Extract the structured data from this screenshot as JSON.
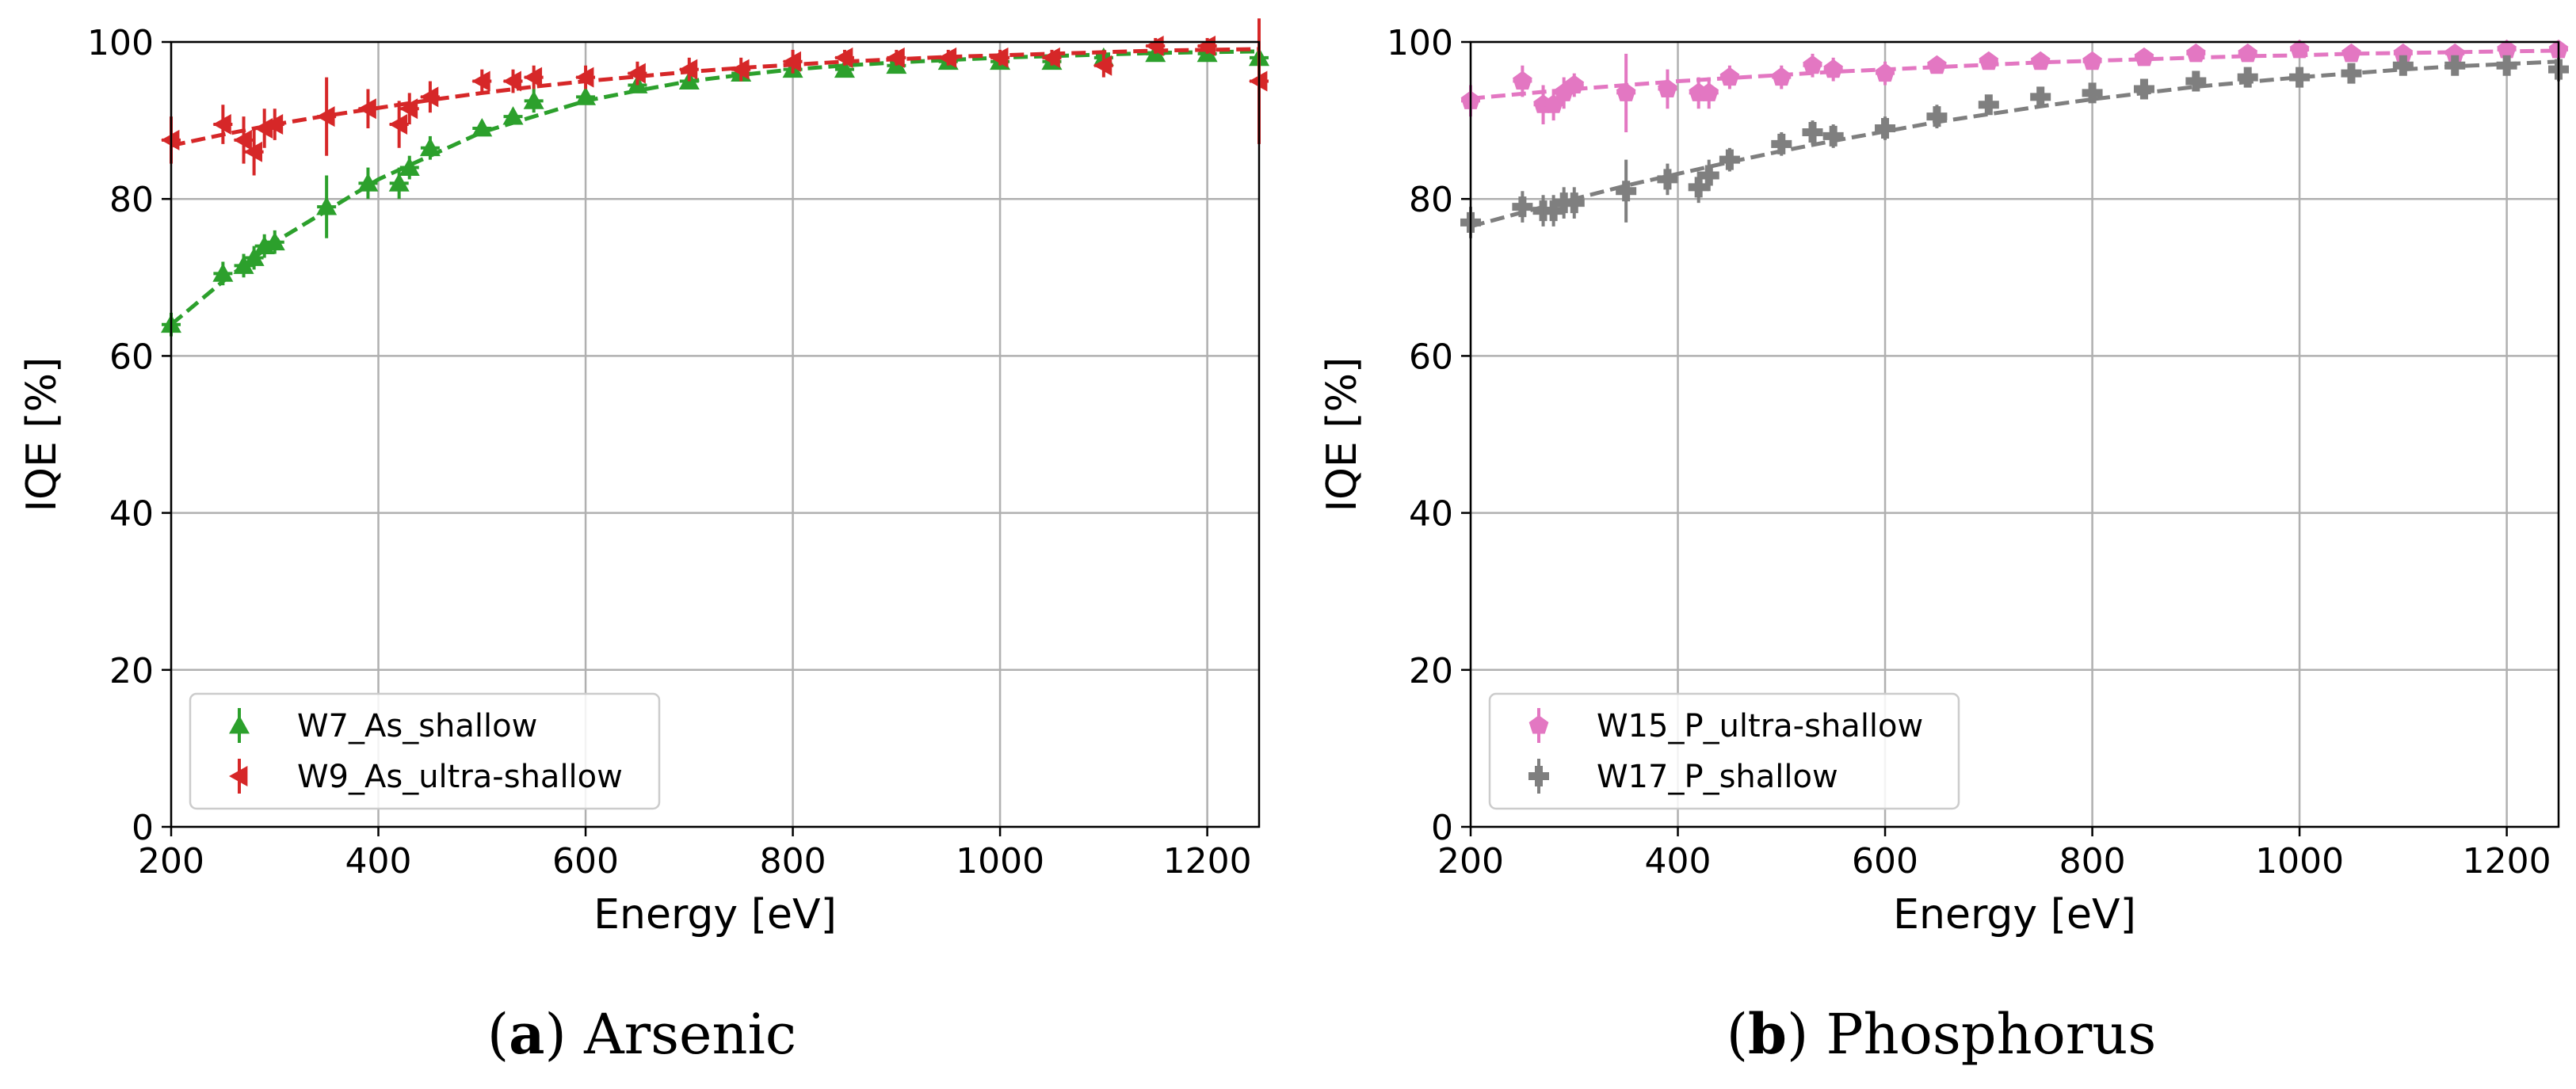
{
  "colors": {
    "W7": "#2ca02c",
    "W9": "#d62728",
    "W15": "#e377c2",
    "W17": "#7f7f7f",
    "grid": "#b0b0b0"
  },
  "chart_data": [
    {
      "type": "scatter",
      "caption_letter": "a",
      "caption_text": "Arsenic",
      "xlabel": "Energy [eV]",
      "ylabel": "IQE [%]",
      "xlim": [
        200,
        1250
      ],
      "ylim": [
        0,
        100
      ],
      "xticks": [
        200,
        400,
        600,
        800,
        1000,
        1200
      ],
      "yticks": [
        0,
        20,
        40,
        60,
        80,
        100
      ],
      "xtick_labels": [
        "200",
        "400",
        "600",
        "800",
        "1000",
        "1200"
      ],
      "ytick_labels": [
        "0",
        "20",
        "40",
        "60",
        "80",
        "100"
      ],
      "grid": true,
      "legend_position": "lower-left",
      "series": [
        {
          "name": "W7_As_shallow",
          "marker": "triangle-up",
          "color_key": "W7",
          "x": [
            200,
            250,
            270,
            280,
            290,
            300,
            350,
            390,
            420,
            430,
            450,
            500,
            530,
            550,
            600,
            650,
            700,
            750,
            800,
            850,
            900,
            950,
            1000,
            1050,
            1100,
            1150,
            1200,
            1250
          ],
          "y": [
            64,
            70.5,
            71.5,
            72.5,
            74,
            74.5,
            79,
            82,
            82,
            84,
            86.5,
            89,
            90.5,
            92.5,
            93,
            94.5,
            95,
            96,
            96.5,
            96.5,
            97,
            97.5,
            97.5,
            97.5,
            98,
            98.5,
            98.5,
            98
          ],
          "yerr": [
            1.5,
            1.5,
            1.5,
            1.5,
            1.5,
            1.5,
            4,
            2,
            2,
            1.5,
            1.5,
            1,
            1,
            1.5,
            1,
            1,
            1,
            1,
            1,
            1,
            1,
            1,
            1,
            1,
            1,
            1,
            1,
            1.5
          ],
          "fit_x": [
            200,
            250,
            300,
            350,
            400,
            450,
            500,
            550,
            600,
            650,
            700,
            750,
            800,
            850,
            900,
            950,
            1000,
            1050,
            1100,
            1150,
            1200,
            1250
          ],
          "fit_y": [
            64,
            69.5,
            74.5,
            78.5,
            82.5,
            85.5,
            88.5,
            90.5,
            92.5,
            93.8,
            95,
            95.8,
            96.5,
            97,
            97.4,
            97.7,
            98,
            98.2,
            98.4,
            98.6,
            98.7,
            98.8
          ]
        },
        {
          "name": "W9_As_ultra-shallow",
          "marker": "triangle-left",
          "color_key": "W9",
          "x": [
            200,
            250,
            270,
            280,
            290,
            300,
            350,
            390,
            420,
            430,
            450,
            500,
            530,
            550,
            600,
            650,
            700,
            750,
            800,
            850,
            900,
            950,
            1000,
            1050,
            1100,
            1150,
            1200,
            1250
          ],
          "y": [
            87.5,
            89.5,
            87.5,
            86,
            89,
            89.5,
            90.5,
            91.5,
            89.5,
            91.5,
            93,
            95,
            95,
            95.5,
            95.5,
            96,
            96.5,
            96.5,
            97.5,
            98,
            98,
            98,
            98,
            98,
            97,
            99.5,
            99.5,
            95
          ],
          "yerr": [
            3,
            2.5,
            3,
            3,
            2.5,
            2,
            5,
            2.5,
            3,
            2,
            2,
            1.5,
            1.5,
            1.5,
            1.5,
            1.5,
            1.5,
            1.5,
            1.5,
            1,
            1,
            1,
            1,
            1,
            1.5,
            1,
            1,
            8
          ],
          "fit_x": [
            200,
            250,
            300,
            350,
            400,
            450,
            500,
            550,
            600,
            650,
            700,
            750,
            800,
            850,
            900,
            950,
            1000,
            1050,
            1100,
            1150,
            1200,
            1250
          ],
          "fit_y": [
            86.8,
            88.2,
            89.5,
            90.6,
            91.6,
            92.6,
            93.5,
            94.3,
            95,
            95.6,
            96.2,
            96.7,
            97.1,
            97.5,
            97.8,
            98.1,
            98.3,
            98.5,
            98.7,
            98.9,
            99,
            99.1
          ]
        }
      ]
    },
    {
      "type": "scatter",
      "caption_letter": "b",
      "caption_text": "Phosphorus",
      "xlabel": "Energy [eV]",
      "ylabel": "IQE [%]",
      "xlim": [
        200,
        1250
      ],
      "ylim": [
        0,
        100
      ],
      "xticks": [
        200,
        400,
        600,
        800,
        1000,
        1200
      ],
      "yticks": [
        0,
        20,
        40,
        60,
        80,
        100
      ],
      "xtick_labels": [
        "200",
        "400",
        "600",
        "800",
        "1000",
        "1200"
      ],
      "ytick_labels": [
        "0",
        "20",
        "40",
        "60",
        "80",
        "100"
      ],
      "grid": true,
      "legend_position": "lower-left",
      "series": [
        {
          "name": "W15_P_ultra-shallow",
          "marker": "pentagon",
          "color_key": "W15",
          "x": [
            200,
            250,
            270,
            280,
            290,
            300,
            350,
            390,
            420,
            430,
            450,
            500,
            530,
            550,
            600,
            650,
            700,
            750,
            800,
            850,
            900,
            950,
            1000,
            1050,
            1100,
            1150,
            1200,
            1250
          ],
          "y": [
            92.5,
            95,
            92,
            92,
            93.5,
            94.5,
            93.5,
            94,
            93.5,
            93.5,
            95.5,
            95.5,
            97,
            96.5,
            96,
            97,
            97.5,
            97.5,
            97.5,
            98,
            98.5,
            98.5,
            99,
            98.5,
            98.5,
            98.5,
            99,
            99
          ],
          "yerr": [
            2,
            2,
            2.5,
            2,
            2,
            1.5,
            5,
            2.5,
            2,
            2,
            1.5,
            1.5,
            1.5,
            1.5,
            1.5,
            1,
            1,
            1,
            1,
            1,
            1,
            1,
            1,
            1,
            1,
            1,
            1,
            1
          ],
          "fit_x": [
            200,
            250,
            300,
            350,
            400,
            450,
            500,
            550,
            600,
            650,
            700,
            750,
            800,
            850,
            900,
            950,
            1000,
            1050,
            1100,
            1150,
            1200,
            1250
          ],
          "fit_y": [
            92.8,
            93.4,
            94,
            94.5,
            95,
            95.4,
            95.8,
            96.2,
            96.5,
            96.8,
            97.1,
            97.4,
            97.6,
            97.8,
            98,
            98.2,
            98.3,
            98.5,
            98.6,
            98.7,
            98.8,
            98.9
          ]
        },
        {
          "name": "W17_P_shallow",
          "marker": "plus",
          "color_key": "W17",
          "x": [
            200,
            250,
            270,
            280,
            290,
            300,
            350,
            390,
            420,
            430,
            450,
            500,
            530,
            550,
            600,
            650,
            700,
            750,
            800,
            850,
            900,
            950,
            1000,
            1050,
            1100,
            1150,
            1200,
            1250
          ],
          "y": [
            77,
            79,
            78.5,
            78.5,
            79.5,
            79.5,
            81,
            82.5,
            81.5,
            83,
            85,
            87,
            88.5,
            88,
            89,
            90.5,
            92,
            93,
            93.5,
            94,
            95,
            95.5,
            95.5,
            96,
            97,
            97,
            97,
            96.5
          ],
          "yerr": [
            2,
            2,
            2,
            2,
            2,
            2,
            4,
            2,
            2,
            2,
            1.5,
            1.5,
            1.5,
            1.5,
            1.5,
            1.5,
            1,
            1,
            1,
            1,
            1,
            1,
            1,
            1,
            1,
            1,
            1,
            1.5
          ],
          "fit_x": [
            200,
            250,
            300,
            350,
            400,
            450,
            500,
            550,
            600,
            650,
            700,
            750,
            800,
            850,
            900,
            950,
            1000,
            1050,
            1100,
            1150,
            1200,
            1250
          ],
          "fit_y": [
            76.5,
            78.3,
            80,
            81.7,
            83.2,
            84.7,
            86.1,
            87.4,
            88.6,
            89.8,
            90.8,
            91.8,
            92.7,
            93.5,
            94.3,
            94.9,
            95.5,
            96,
            96.5,
            96.9,
            97.2,
            97.5
          ]
        }
      ]
    }
  ]
}
